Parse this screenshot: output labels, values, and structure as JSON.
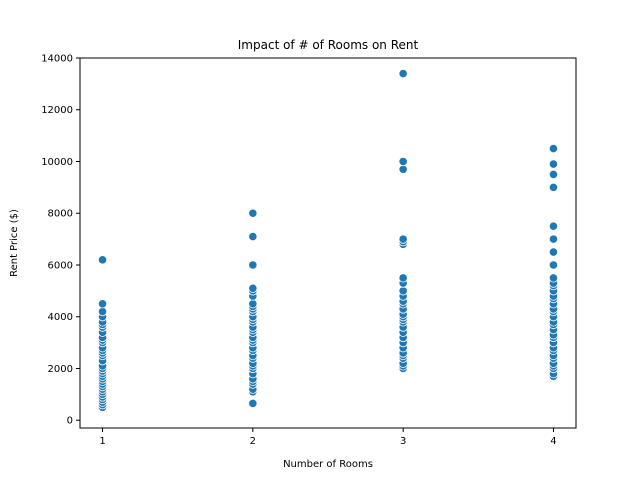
{
  "chart_data": {
    "type": "scatter",
    "title": "Impact of # of Rooms on Rent",
    "xlabel": "Number of Rooms",
    "ylabel": "Rent Price ($)",
    "x_ticks": [
      1,
      2,
      3,
      4
    ],
    "y_ticks": [
      0,
      2000,
      4000,
      6000,
      8000,
      10000,
      12000,
      14000
    ],
    "xlim": [
      0.85,
      4.15
    ],
    "ylim": [
      -300,
      14000
    ],
    "grid": false,
    "marker_color": "#1f77b4",
    "points": [
      {
        "x": 1,
        "y": 500
      },
      {
        "x": 1,
        "y": 600
      },
      {
        "x": 1,
        "y": 700
      },
      {
        "x": 1,
        "y": 800
      },
      {
        "x": 1,
        "y": 900
      },
      {
        "x": 1,
        "y": 1000
      },
      {
        "x": 1,
        "y": 1100
      },
      {
        "x": 1,
        "y": 1200
      },
      {
        "x": 1,
        "y": 1300
      },
      {
        "x": 1,
        "y": 1400
      },
      {
        "x": 1,
        "y": 1500
      },
      {
        "x": 1,
        "y": 1600
      },
      {
        "x": 1,
        "y": 1700
      },
      {
        "x": 1,
        "y": 1800
      },
      {
        "x": 1,
        "y": 1900
      },
      {
        "x": 1,
        "y": 2000
      },
      {
        "x": 1,
        "y": 2100
      },
      {
        "x": 1,
        "y": 2300
      },
      {
        "x": 1,
        "y": 2500
      },
      {
        "x": 1,
        "y": 2600
      },
      {
        "x": 1,
        "y": 2700
      },
      {
        "x": 1,
        "y": 2800
      },
      {
        "x": 1,
        "y": 3000
      },
      {
        "x": 1,
        "y": 3100
      },
      {
        "x": 1,
        "y": 3200
      },
      {
        "x": 1,
        "y": 3400
      },
      {
        "x": 1,
        "y": 3600
      },
      {
        "x": 1,
        "y": 3700
      },
      {
        "x": 1,
        "y": 3800
      },
      {
        "x": 1,
        "y": 4000
      },
      {
        "x": 1,
        "y": 4200
      },
      {
        "x": 1,
        "y": 4500
      },
      {
        "x": 1,
        "y": 6200
      },
      {
        "x": 2,
        "y": 650
      },
      {
        "x": 2,
        "y": 1100
      },
      {
        "x": 2,
        "y": 1200
      },
      {
        "x": 2,
        "y": 1400
      },
      {
        "x": 2,
        "y": 1500
      },
      {
        "x": 2,
        "y": 1600
      },
      {
        "x": 2,
        "y": 1800
      },
      {
        "x": 2,
        "y": 2000
      },
      {
        "x": 2,
        "y": 2100
      },
      {
        "x": 2,
        "y": 2200
      },
      {
        "x": 2,
        "y": 2400
      },
      {
        "x": 2,
        "y": 2500
      },
      {
        "x": 2,
        "y": 2700
      },
      {
        "x": 2,
        "y": 2800
      },
      {
        "x": 2,
        "y": 3000
      },
      {
        "x": 2,
        "y": 3100
      },
      {
        "x": 2,
        "y": 3200
      },
      {
        "x": 2,
        "y": 3400
      },
      {
        "x": 2,
        "y": 3500
      },
      {
        "x": 2,
        "y": 3600
      },
      {
        "x": 2,
        "y": 3800
      },
      {
        "x": 2,
        "y": 3900
      },
      {
        "x": 2,
        "y": 4000
      },
      {
        "x": 2,
        "y": 4200
      },
      {
        "x": 2,
        "y": 4300
      },
      {
        "x": 2,
        "y": 4400
      },
      {
        "x": 2,
        "y": 4500
      },
      {
        "x": 2,
        "y": 4800
      },
      {
        "x": 2,
        "y": 5000
      },
      {
        "x": 2,
        "y": 5100
      },
      {
        "x": 2,
        "y": 6000
      },
      {
        "x": 2,
        "y": 7100
      },
      {
        "x": 2,
        "y": 8000
      },
      {
        "x": 3,
        "y": 2000
      },
      {
        "x": 3,
        "y": 2100
      },
      {
        "x": 3,
        "y": 2200
      },
      {
        "x": 3,
        "y": 2400
      },
      {
        "x": 3,
        "y": 2500
      },
      {
        "x": 3,
        "y": 2600
      },
      {
        "x": 3,
        "y": 2800
      },
      {
        "x": 3,
        "y": 3000
      },
      {
        "x": 3,
        "y": 3200
      },
      {
        "x": 3,
        "y": 3400
      },
      {
        "x": 3,
        "y": 3600
      },
      {
        "x": 3,
        "y": 3800
      },
      {
        "x": 3,
        "y": 3900
      },
      {
        "x": 3,
        "y": 4000
      },
      {
        "x": 3,
        "y": 4100
      },
      {
        "x": 3,
        "y": 4300
      },
      {
        "x": 3,
        "y": 4500
      },
      {
        "x": 3,
        "y": 4600
      },
      {
        "x": 3,
        "y": 4800
      },
      {
        "x": 3,
        "y": 5000
      },
      {
        "x": 3,
        "y": 5300
      },
      {
        "x": 3,
        "y": 5500
      },
      {
        "x": 3,
        "y": 6800
      },
      {
        "x": 3,
        "y": 6900
      },
      {
        "x": 3,
        "y": 7000
      },
      {
        "x": 3,
        "y": 9700
      },
      {
        "x": 3,
        "y": 10000
      },
      {
        "x": 3,
        "y": 13400
      },
      {
        "x": 4,
        "y": 1700
      },
      {
        "x": 4,
        "y": 1800
      },
      {
        "x": 4,
        "y": 2000
      },
      {
        "x": 4,
        "y": 2100
      },
      {
        "x": 4,
        "y": 2200
      },
      {
        "x": 4,
        "y": 2400
      },
      {
        "x": 4,
        "y": 2500
      },
      {
        "x": 4,
        "y": 2700
      },
      {
        "x": 4,
        "y": 2800
      },
      {
        "x": 4,
        "y": 3000
      },
      {
        "x": 4,
        "y": 3200
      },
      {
        "x": 4,
        "y": 3300
      },
      {
        "x": 4,
        "y": 3500
      },
      {
        "x": 4,
        "y": 3700
      },
      {
        "x": 4,
        "y": 3800
      },
      {
        "x": 4,
        "y": 4000
      },
      {
        "x": 4,
        "y": 4200
      },
      {
        "x": 4,
        "y": 4300
      },
      {
        "x": 4,
        "y": 4500
      },
      {
        "x": 4,
        "y": 4700
      },
      {
        "x": 4,
        "y": 4800
      },
      {
        "x": 4,
        "y": 5000
      },
      {
        "x": 4,
        "y": 5200
      },
      {
        "x": 4,
        "y": 5300
      },
      {
        "x": 4,
        "y": 5500
      },
      {
        "x": 4,
        "y": 6000
      },
      {
        "x": 4,
        "y": 6500
      },
      {
        "x": 4,
        "y": 7000
      },
      {
        "x": 4,
        "y": 7500
      },
      {
        "x": 4,
        "y": 9000
      },
      {
        "x": 4,
        "y": 9500
      },
      {
        "x": 4,
        "y": 9900
      },
      {
        "x": 4,
        "y": 10500
      }
    ]
  }
}
